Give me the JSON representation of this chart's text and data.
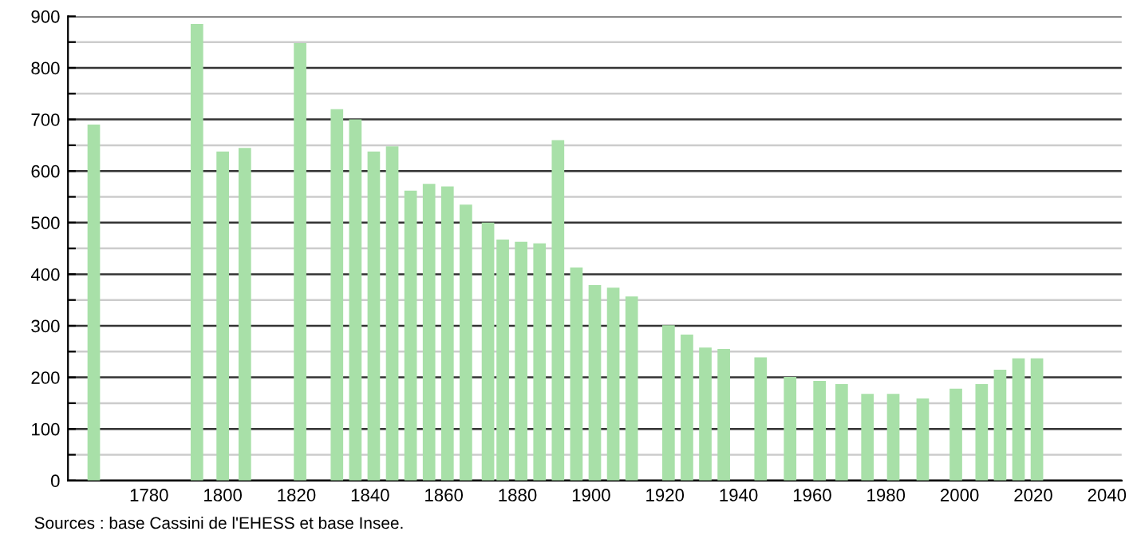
{
  "chart_data": {
    "type": "bar",
    "x": [
      1765,
      1793,
      1800,
      1806,
      1821,
      1831,
      1836,
      1841,
      1846,
      1851,
      1856,
      1861,
      1866,
      1872,
      1876,
      1881,
      1886,
      1891,
      1896,
      1901,
      1906,
      1911,
      1921,
      1926,
      1931,
      1936,
      1946,
      1954,
      1962,
      1968,
      1975,
      1982,
      1990,
      1999,
      2006,
      2011,
      2016,
      2021
    ],
    "values": [
      690,
      885,
      638,
      645,
      848,
      720,
      700,
      638,
      648,
      562,
      575,
      570,
      535,
      500,
      467,
      463,
      460,
      660,
      413,
      379,
      374,
      357,
      301,
      283,
      258,
      255,
      239,
      201,
      193,
      187,
      168,
      168,
      159,
      178,
      187,
      215,
      237,
      237
    ],
    "color": "#a8e0a8",
    "xlim": [
      1758,
      2044
    ],
    "xticks": [
      1780,
      1800,
      1820,
      1840,
      1860,
      1880,
      1900,
      1920,
      1940,
      1960,
      1980,
      2000,
      2020,
      2040
    ],
    "ylim": [
      0,
      900
    ],
    "yticks": [
      0,
      {
        "value": 50,
        "label": null
      },
      100,
      {
        "value": 150,
        "label": null
      },
      200,
      {
        "value": 250,
        "label": null
      },
      300,
      {
        "value": 350,
        "label": null
      },
      400,
      {
        "value": 450,
        "label": null
      },
      500,
      {
        "value": 550,
        "label": null
      },
      600,
      {
        "value": 650,
        "label": null
      },
      700,
      {
        "value": 750,
        "label": null
      },
      800,
      {
        "value": 850,
        "label": null
      },
      900
    ],
    "grid": "y",
    "annotations": [
      "Sources : base Cassini de l'EHESS et base Insee."
    ]
  }
}
